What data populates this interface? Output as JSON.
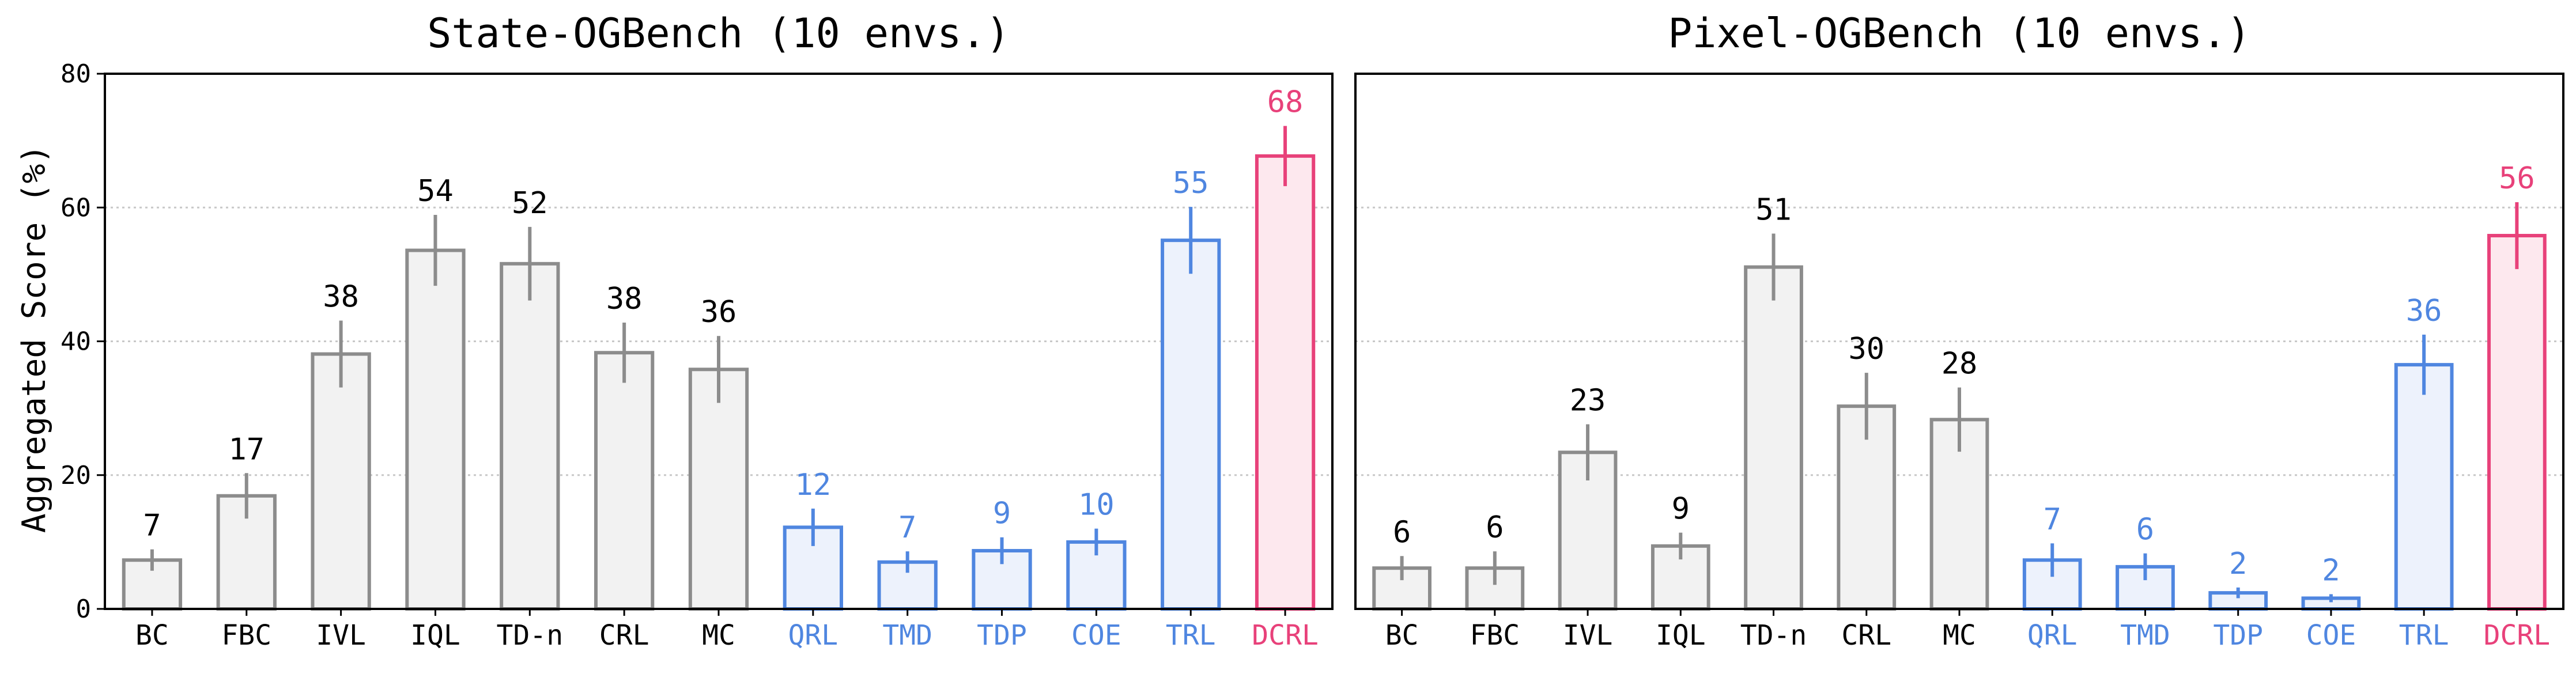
{
  "y_axis_label": "Aggregated Score (%)",
  "colors": {
    "gray": "#8c8c8c",
    "gray_fill": "#f2f2f2",
    "blue": "#4f86e0",
    "blue_fill": "#edf2fc",
    "pink": "#e8417a",
    "pink_fill": "#fde8ee",
    "grid": "#c8c8c8"
  },
  "chart_data": [
    {
      "type": "bar",
      "title": "State-OGBench (10 envs.)",
      "ylabel": "Aggregated Score (%)",
      "ylim": [
        0,
        80
      ],
      "yticks": [
        "0",
        "20",
        "40",
        "60",
        "80"
      ],
      "grid": "horizontal dotted",
      "categories": [
        "BC",
        "FBC",
        "IVL",
        "IQL",
        "TD-n",
        "CRL",
        "MC",
        "QRL",
        "TMD",
        "TDP",
        "COE",
        "TRL",
        "DCRL"
      ],
      "groups": [
        "gray",
        "gray",
        "gray",
        "gray",
        "gray",
        "gray",
        "gray",
        "blue",
        "blue",
        "blue",
        "blue",
        "blue",
        "pink"
      ],
      "values": [
        7.3,
        16.9,
        38.1,
        53.6,
        51.6,
        38.3,
        35.8,
        12.2,
        7.0,
        8.7,
        10.0,
        55.1,
        67.7
      ],
      "errors": [
        1.6,
        3.4,
        5.0,
        5.3,
        5.5,
        4.5,
        5.0,
        2.8,
        1.6,
        2.0,
        2.0,
        5.0,
        4.5
      ],
      "labels": [
        "7",
        "17",
        "38",
        "54",
        "52",
        "38",
        "36",
        "12",
        "7",
        "9",
        "10",
        "55",
        "68"
      ]
    },
    {
      "type": "bar",
      "title": "Pixel-OGBench (10 envs.)",
      "ylim": [
        0,
        80
      ],
      "yticks": [
        "0",
        "20",
        "40",
        "60",
        "80"
      ],
      "grid": "horizontal dotted",
      "categories": [
        "BC",
        "FBC",
        "IVL",
        "IQL",
        "TD-n",
        "CRL",
        "MC",
        "QRL",
        "TMD",
        "TDP",
        "COE",
        "TRL",
        "DCRL"
      ],
      "groups": [
        "gray",
        "gray",
        "gray",
        "gray",
        "gray",
        "gray",
        "gray",
        "blue",
        "blue",
        "blue",
        "blue",
        "blue",
        "pink"
      ],
      "values": [
        6.1,
        6.1,
        23.4,
        9.4,
        51.1,
        30.3,
        28.3,
        7.3,
        6.3,
        2.4,
        1.6,
        36.5,
        55.8
      ],
      "errors": [
        1.8,
        2.5,
        4.2,
        2.0,
        5.0,
        5.0,
        4.8,
        2.5,
        2.0,
        0.8,
        0.6,
        4.5,
        5.0
      ],
      "labels": [
        "6",
        "6",
        "23",
        "9",
        "51",
        "30",
        "28",
        "7",
        "6",
        "2",
        "2",
        "36",
        "56"
      ]
    }
  ]
}
